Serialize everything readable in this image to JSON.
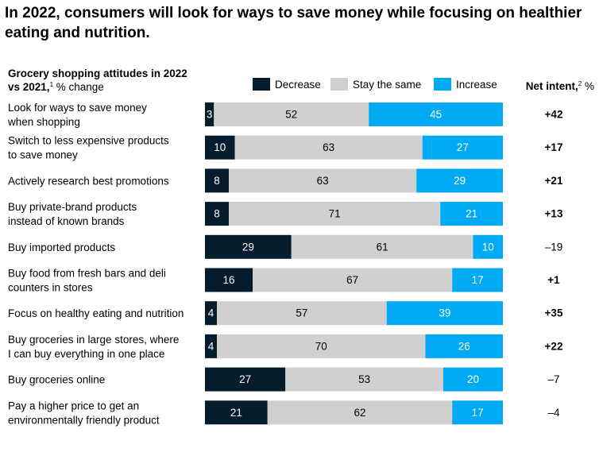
{
  "chart_data": {
    "type": "bar",
    "orientation": "horizontal",
    "stacked": true,
    "title": "In 2022, consumers will look for ways to save money while focusing on healthier eating and nutrition.",
    "subtitle_bold": "Grocery shopping attitudes in 2022 vs 2021,",
    "subtitle_sup": "1",
    "subtitle_rest": " % change",
    "net_header": "Net intent,",
    "net_header_sup": "2",
    "net_header_rest": " %",
    "legend": [
      "Decrease",
      "Stay the same",
      "Increase"
    ],
    "colors": {
      "decrease": "#051c2c",
      "same": "#d0d0d0",
      "increase": "#00a9f4"
    },
    "categories": [
      [
        "Look for ways to save money",
        "when shopping"
      ],
      [
        "Switch to less expensive products",
        "to save money"
      ],
      [
        "Actively research best promotions"
      ],
      [
        "Buy private-brand products",
        "instead of known brands"
      ],
      [
        "Buy imported products"
      ],
      [
        "Buy food from fresh bars and deli",
        "counters in stores"
      ],
      [
        "Focus on healthy eating and nutrition"
      ],
      [
        "Buy groceries in large stores, where",
        "I can buy everything in one place"
      ],
      [
        "Buy groceries online"
      ],
      [
        "Pay a higher price to get an",
        "environmentally friendly product"
      ]
    ],
    "series": [
      {
        "name": "Decrease",
        "values": [
          3,
          10,
          8,
          8,
          29,
          16,
          4,
          4,
          27,
          21
        ]
      },
      {
        "name": "Stay the same",
        "values": [
          52,
          63,
          63,
          71,
          61,
          67,
          57,
          70,
          53,
          62
        ]
      },
      {
        "name": "Increase",
        "values": [
          45,
          27,
          29,
          21,
          10,
          17,
          39,
          26,
          20,
          17
        ]
      }
    ],
    "net_intent": [
      "+42",
      "+17",
      "+21",
      "+13",
      "–19",
      "+1",
      "+35",
      "+22",
      "–7",
      "–4"
    ],
    "net_bold": [
      true,
      true,
      true,
      true,
      false,
      true,
      true,
      true,
      false,
      false
    ]
  }
}
